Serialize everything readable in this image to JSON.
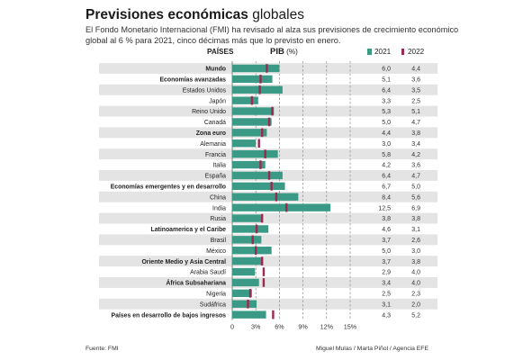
{
  "title_bold": "Previsiones económicas",
  "title_rest": " globales",
  "subtitle": "El Fondo Monetario Internacional (FMI) ha revisado al alza sus previsiones de crecimiento económico global al 6 % para 2021, cinco décimas más que lo previsto en enero.",
  "col_countries": "PAÍSES",
  "col_pib": "PIB",
  "col_pib_unit": "(%)",
  "legend": [
    {
      "label": "2021",
      "color": "#3a9a85"
    },
    {
      "label": "2022",
      "color": "#9c2a4e"
    }
  ],
  "source": "Fuente: FMI",
  "credit": "Miguel Mulas / Marta Piñol / Agencia EFE",
  "chart_data": {
    "type": "bar",
    "orientation": "horizontal",
    "x_ticks": [
      "0",
      "3%",
      "6%",
      "9%",
      "12%",
      "15%"
    ],
    "xlim": [
      0,
      15
    ],
    "series": [
      {
        "name": "2021",
        "color": "#3a9a85"
      },
      {
        "name": "2022",
        "color": "#9c2a4e",
        "marker": "tick"
      }
    ],
    "rows": [
      {
        "label": "Mundo",
        "bold": true,
        "v2021": 6.0,
        "v2022": 4.4,
        "t2021": "6,0",
        "t2022": "4,4"
      },
      {
        "label": "Economías avanzadas",
        "bold": true,
        "v2021": 5.1,
        "v2022": 3.6,
        "t2021": "5,1",
        "t2022": "3,6"
      },
      {
        "label": "Estados Unidos",
        "bold": false,
        "v2021": 6.4,
        "v2022": 3.5,
        "t2021": "6,4",
        "t2022": "3,5"
      },
      {
        "label": "Japón",
        "bold": false,
        "v2021": 3.3,
        "v2022": 2.5,
        "t2021": "3,3",
        "t2022": "2,5"
      },
      {
        "label": "Reino Unido",
        "bold": false,
        "v2021": 5.3,
        "v2022": 5.1,
        "t2021": "5,3",
        "t2022": "5,1"
      },
      {
        "label": "Canadá",
        "bold": false,
        "v2021": 5.0,
        "v2022": 4.7,
        "t2021": "5,0",
        "t2022": "4,7"
      },
      {
        "label": "Zona euro",
        "bold": true,
        "v2021": 4.4,
        "v2022": 3.8,
        "t2021": "4,4",
        "t2022": "3,8"
      },
      {
        "label": "Alemania",
        "bold": false,
        "v2021": 3.0,
        "v2022": 3.4,
        "t2021": "3,0",
        "t2022": "3,4"
      },
      {
        "label": "Francia",
        "bold": false,
        "v2021": 5.8,
        "v2022": 4.2,
        "t2021": "5,8",
        "t2022": "4,2"
      },
      {
        "label": "Italia",
        "bold": false,
        "v2021": 4.2,
        "v2022": 3.6,
        "t2021": "4,2",
        "t2022": "3,6"
      },
      {
        "label": "España",
        "bold": false,
        "v2021": 6.4,
        "v2022": 4.7,
        "t2021": "6,4",
        "t2022": "4,7"
      },
      {
        "label": "Economías emergentes y en desarrollo",
        "bold": true,
        "v2021": 6.7,
        "v2022": 5.0,
        "t2021": "6,7",
        "t2022": "5,0"
      },
      {
        "label": "China",
        "bold": false,
        "v2021": 8.4,
        "v2022": 5.6,
        "t2021": "8,4",
        "t2022": "5,6"
      },
      {
        "label": "India",
        "bold": false,
        "v2021": 12.5,
        "v2022": 6.9,
        "t2021": "12,5",
        "t2022": "6,9"
      },
      {
        "label": "Rusia",
        "bold": false,
        "v2021": 3.8,
        "v2022": 3.8,
        "t2021": "3,8",
        "t2022": "3,8"
      },
      {
        "label": "Latinoamerica y el Caribe",
        "bold": true,
        "v2021": 4.6,
        "v2022": 3.1,
        "t2021": "4,6",
        "t2022": "3,1"
      },
      {
        "label": "Brasil",
        "bold": false,
        "v2021": 3.7,
        "v2022": 2.6,
        "t2021": "3,7",
        "t2022": "2,6"
      },
      {
        "label": "México",
        "bold": false,
        "v2021": 5.0,
        "v2022": 3.0,
        "t2021": "5,0",
        "t2022": "3,0"
      },
      {
        "label": "Oriente Medio y Asia Central",
        "bold": true,
        "v2021": 3.7,
        "v2022": 3.8,
        "t2021": "3,7",
        "t2022": "3,8"
      },
      {
        "label": "Arabia Saudí",
        "bold": false,
        "v2021": 2.9,
        "v2022": 4.0,
        "t2021": "2,9",
        "t2022": "4,0"
      },
      {
        "label": "África Subsahariana",
        "bold": true,
        "v2021": 3.4,
        "v2022": 4.0,
        "t2021": "3,4",
        "t2022": "4,0"
      },
      {
        "label": "Nigeria",
        "bold": false,
        "v2021": 2.5,
        "v2022": 2.3,
        "t2021": "2,5",
        "t2022": "2,3"
      },
      {
        "label": "Sudáfrica",
        "bold": false,
        "v2021": 3.1,
        "v2022": 2.0,
        "t2021": "3,1",
        "t2022": "2,0"
      },
      {
        "label": "Países en desarrollo de bajos ingresos",
        "bold": true,
        "v2021": 4.3,
        "v2022": 5.2,
        "t2021": "4,3",
        "t2022": "5,2"
      }
    ]
  }
}
